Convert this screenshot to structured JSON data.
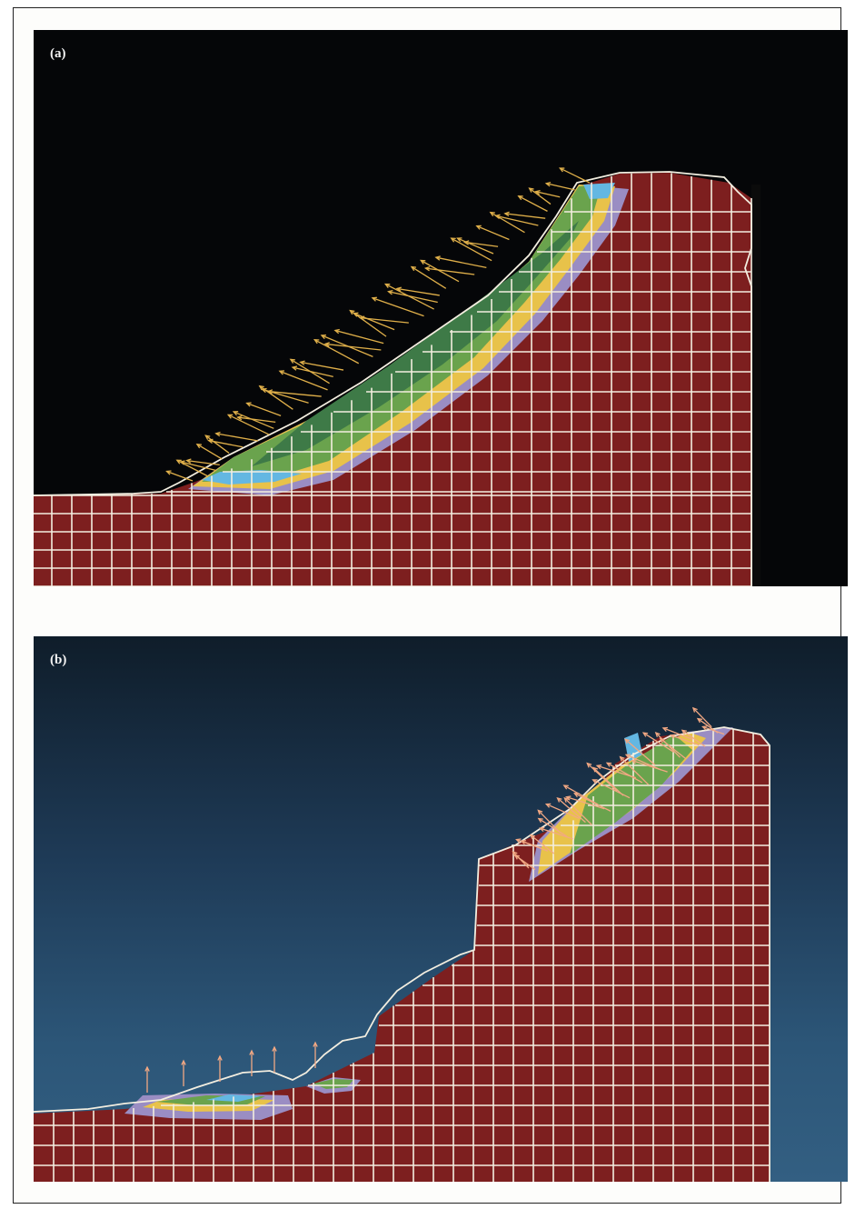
{
  "panels": [
    {
      "id": "a",
      "label": "(a)"
    },
    {
      "id": "b",
      "label": "(b)"
    }
  ],
  "colors": {
    "soil": "#7d1f1f",
    "mesh": "#f3eee0",
    "background_a": "#050608",
    "background_b": "#2a5274",
    "arrow_a": "#e0b04a",
    "arrow_b": "#f2a883",
    "zone_green": "#6aa34d",
    "zone_dark_green": "#3e7a47",
    "zone_yellow": "#e8c24a",
    "zone_purple": "#9a8dc3",
    "zone_blue": "#63b7e2"
  },
  "icons": {
    "displacement_vector": "arrow"
  }
}
